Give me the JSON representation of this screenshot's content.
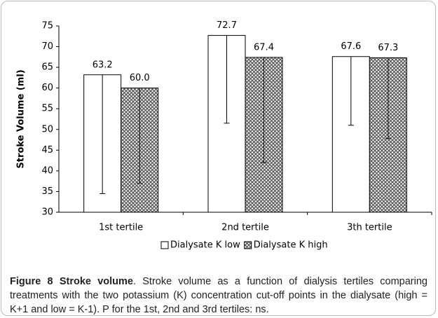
{
  "chart_data": {
    "type": "bar",
    "y_label": "Stroke Volume (ml)",
    "categories": [
      "1st tertile",
      "2nd tertile",
      "3th tertile"
    ],
    "series": [
      {
        "name": "Dialysate K low",
        "color": "#ffffff",
        "values": [
          63.2,
          72.7,
          67.6
        ],
        "value_labels": [
          "63.2",
          "72.7",
          "67.6"
        ],
        "errors": [
          28.7,
          21.2,
          16.6
        ]
      },
      {
        "name": "Dialysate K high",
        "color": "#555555",
        "pattern": "crosshatch",
        "values": [
          60.0,
          67.4,
          67.3
        ],
        "value_labels": [
          "60.0",
          "67.4",
          "67.3"
        ],
        "errors": [
          23,
          25.4,
          19.5
        ]
      }
    ],
    "ylim": [
      30,
      75
    ],
    "yticks": [
      30,
      35,
      40,
      45,
      50,
      55,
      60,
      65,
      70,
      75
    ],
    "grid": false,
    "legend": "bottom"
  },
  "caption": {
    "label": "Figure 8 Stroke volume",
    "text": ". Stroke volume as a function of dialysis tertiles comparing treatments with the two potassium (K) concentration cut-off points in the dialysate (high = K+1 and low = K-1). P for the 1st, 2nd and 3rd tertiles: ns."
  }
}
